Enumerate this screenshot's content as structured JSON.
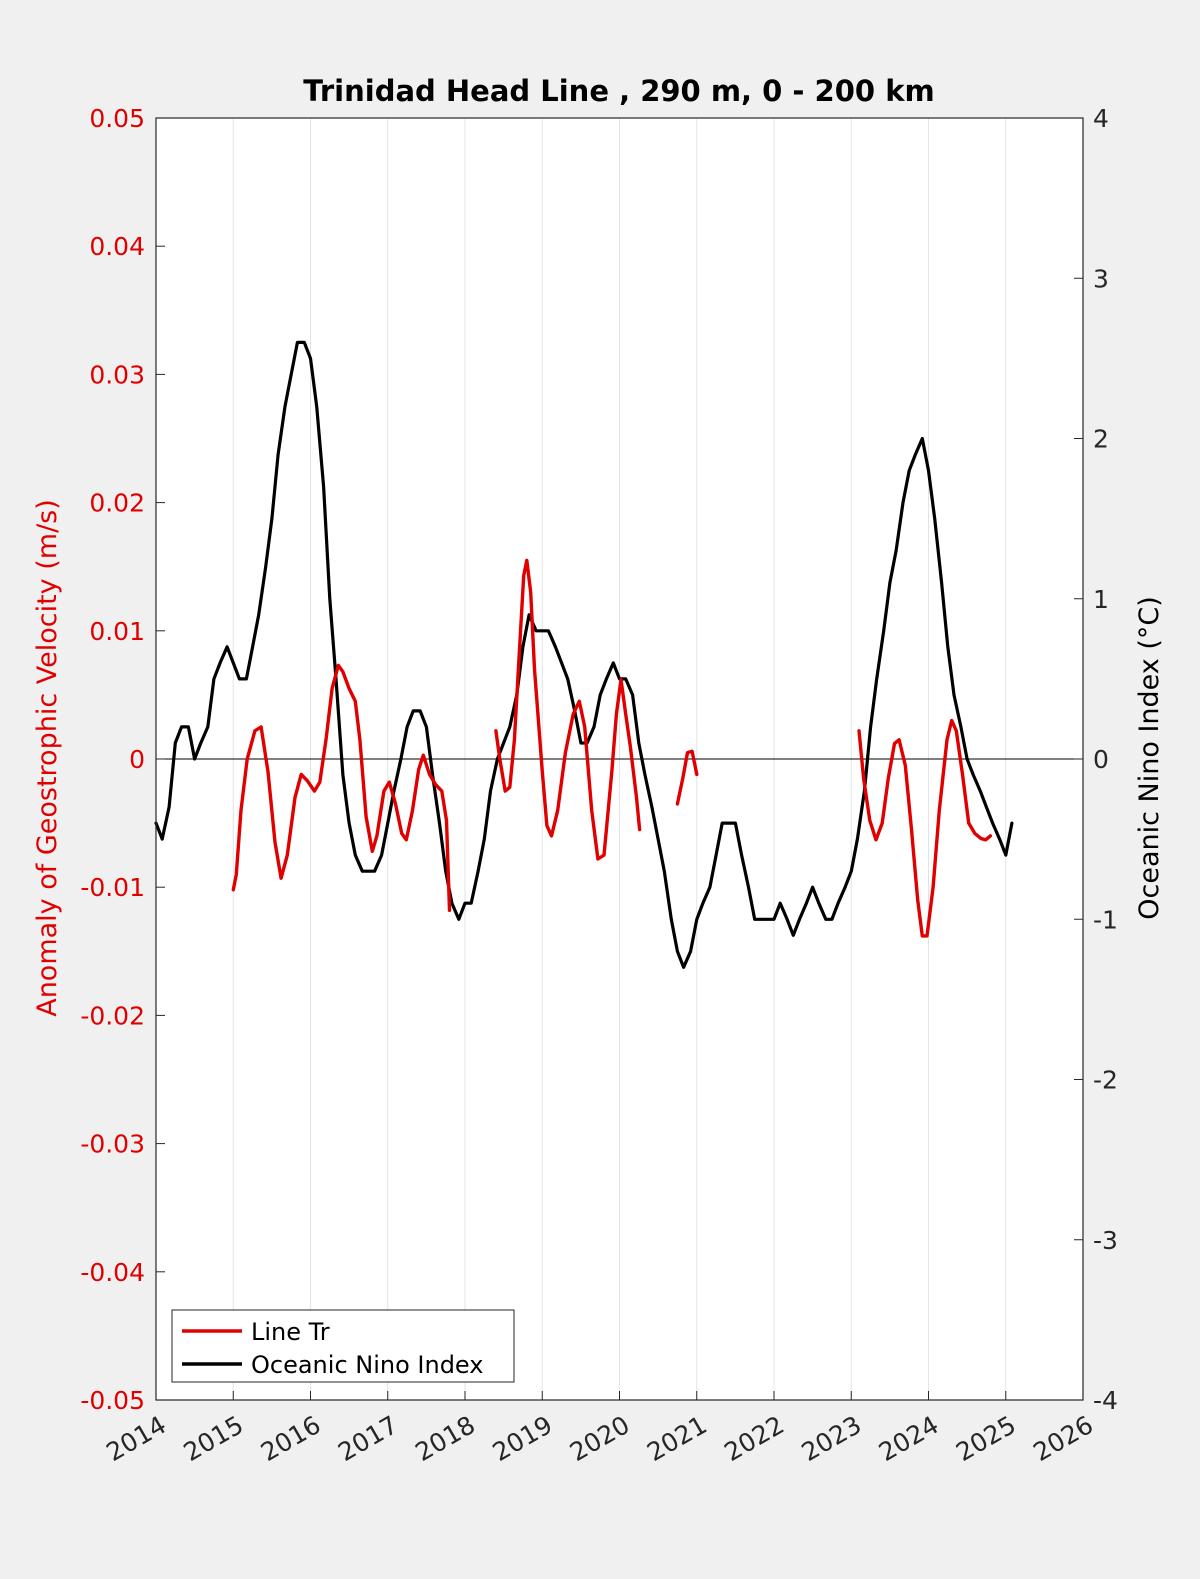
{
  "chart_data": {
    "type": "line",
    "title": "Trinidad Head Line , 290 m, 0 - 200 km",
    "xlabel": "",
    "ylabel_left": "Anomaly of Geostrophic Velocity (m/s)",
    "ylabel_right": "Oceanic Nino Index (°C)",
    "xlim": [
      2014,
      2026
    ],
    "ylim_left": [
      -0.05,
      0.05
    ],
    "ylim_right": [
      -4,
      4
    ],
    "x_ticks": [
      "2014",
      "2015",
      "2016",
      "2017",
      "2018",
      "2019",
      "2020",
      "2021",
      "2022",
      "2023",
      "2024",
      "2025",
      "2026"
    ],
    "y_ticks_left": [
      "0.05",
      "0.04",
      "0.03",
      "0.02",
      "0.01",
      "0",
      "-0.01",
      "-0.02",
      "-0.03",
      "-0.04",
      "-0.05"
    ],
    "y_ticks_right": [
      "4",
      "3",
      "2",
      "1",
      "0",
      "-1",
      "-2",
      "-3",
      "-4"
    ],
    "grid": "vertical",
    "zero_line": true,
    "legend_position": "bottom-left",
    "colors": {
      "left_axis": "#e00000",
      "series_line_tr": "#e00000",
      "series_oni": "#000000",
      "plot_bg": "#ffffff",
      "figure_bg": "#f0f0f0"
    },
    "series": [
      {
        "name": "Line Tr",
        "axis": "left",
        "segments": [
          [
            [
              2015.0,
              -0.0102
            ],
            [
              2015.04,
              -0.009
            ],
            [
              2015.1,
              -0.004
            ],
            [
              2015.18,
              0.0
            ],
            [
              2015.28,
              0.0022
            ],
            [
              2015.36,
              0.0025
            ],
            [
              2015.45,
              -0.001
            ],
            [
              2015.54,
              -0.0065
            ],
            [
              2015.62,
              -0.0093
            ],
            [
              2015.7,
              -0.0075
            ],
            [
              2015.8,
              -0.003
            ],
            [
              2015.88,
              -0.0012
            ],
            [
              2015.96,
              -0.0017
            ],
            [
              2016.05,
              -0.0025
            ],
            [
              2016.12,
              -0.0018
            ],
            [
              2016.2,
              0.0015
            ],
            [
              2016.28,
              0.0055
            ],
            [
              2016.36,
              0.0073
            ],
            [
              2016.42,
              0.0068
            ],
            [
              2016.5,
              0.0055
            ],
            [
              2016.58,
              0.0045
            ],
            [
              2016.64,
              0.0015
            ],
            [
              2016.72,
              -0.0045
            ],
            [
              2016.8,
              -0.0072
            ],
            [
              2016.86,
              -0.006
            ],
            [
              2016.95,
              -0.0025
            ],
            [
              2017.02,
              -0.0018
            ],
            [
              2017.1,
              -0.0035
            ],
            [
              2017.18,
              -0.0058
            ],
            [
              2017.24,
              -0.0063
            ],
            [
              2017.32,
              -0.004
            ],
            [
              2017.4,
              -0.0008
            ],
            [
              2017.46,
              0.0003
            ],
            [
              2017.54,
              -0.0012
            ],
            [
              2017.62,
              -0.002
            ],
            [
              2017.7,
              -0.0025
            ],
            [
              2017.76,
              -0.0048
            ],
            [
              2017.8,
              -0.0118
            ]
          ],
          [
            [
              2018.4,
              0.0022
            ],
            [
              2018.45,
              0.0
            ],
            [
              2018.52,
              -0.0025
            ],
            [
              2018.58,
              -0.0022
            ],
            [
              2018.64,
              0.0015
            ],
            [
              2018.7,
              0.008
            ],
            [
              2018.76,
              0.0143
            ],
            [
              2018.8,
              0.0155
            ],
            [
              2018.85,
              0.013
            ],
            [
              2018.9,
              0.007
            ],
            [
              2019.0,
              -0.001
            ],
            [
              2019.06,
              -0.0052
            ],
            [
              2019.12,
              -0.006
            ],
            [
              2019.2,
              -0.004
            ],
            [
              2019.3,
              0.0005
            ],
            [
              2019.4,
              0.0035
            ],
            [
              2019.48,
              0.0045
            ],
            [
              2019.55,
              0.0025
            ],
            [
              2019.64,
              -0.004
            ],
            [
              2019.72,
              -0.0078
            ],
            [
              2019.8,
              -0.0075
            ],
            [
              2019.9,
              -0.001
            ],
            [
              2019.96,
              0.0035
            ],
            [
              2020.02,
              0.0062
            ],
            [
              2020.08,
              0.0035
            ],
            [
              2020.14,
              0.001
            ],
            [
              2020.22,
              -0.003
            ],
            [
              2020.26,
              -0.0055
            ]
          ],
          [
            [
              2020.75,
              -0.0035
            ],
            [
              2020.82,
              -0.0015
            ],
            [
              2020.88,
              0.0005
            ],
            [
              2020.94,
              0.0006
            ],
            [
              2021.0,
              -0.0012
            ]
          ],
          [
            [
              2023.1,
              0.0022
            ],
            [
              2023.16,
              -0.0015
            ],
            [
              2023.24,
              -0.0048
            ],
            [
              2023.32,
              -0.0063
            ],
            [
              2023.4,
              -0.005
            ],
            [
              2023.48,
              -0.0015
            ],
            [
              2023.56,
              0.0012
            ],
            [
              2023.62,
              0.0015
            ],
            [
              2023.7,
              -0.0005
            ],
            [
              2023.78,
              -0.0055
            ],
            [
              2023.86,
              -0.011
            ],
            [
              2023.92,
              -0.0138
            ],
            [
              2023.98,
              -0.0138
            ],
            [
              2024.06,
              -0.01
            ],
            [
              2024.14,
              -0.004
            ],
            [
              2024.24,
              0.0015
            ],
            [
              2024.3,
              0.003
            ],
            [
              2024.36,
              0.0022
            ],
            [
              2024.44,
              -0.0012
            ],
            [
              2024.52,
              -0.005
            ],
            [
              2024.6,
              -0.0058
            ],
            [
              2024.68,
              -0.0062
            ],
            [
              2024.74,
              -0.0063
            ],
            [
              2024.8,
              -0.006
            ]
          ]
        ]
      },
      {
        "name": "Oceanic Nino Index",
        "axis": "right",
        "points": [
          [
            2014.0,
            -0.4
          ],
          [
            2014.08,
            -0.5
          ],
          [
            2014.17,
            -0.3
          ],
          [
            2014.25,
            0.1
          ],
          [
            2014.33,
            0.2
          ],
          [
            2014.42,
            0.2
          ],
          [
            2014.5,
            0.0
          ],
          [
            2014.58,
            0.1
          ],
          [
            2014.67,
            0.2
          ],
          [
            2014.75,
            0.5
          ],
          [
            2014.83,
            0.6
          ],
          [
            2014.92,
            0.7
          ],
          [
            2015.0,
            0.6
          ],
          [
            2015.08,
            0.5
          ],
          [
            2015.17,
            0.5
          ],
          [
            2015.25,
            0.7
          ],
          [
            2015.33,
            0.9
          ],
          [
            2015.42,
            1.2
          ],
          [
            2015.5,
            1.5
          ],
          [
            2015.58,
            1.9
          ],
          [
            2015.67,
            2.2
          ],
          [
            2015.75,
            2.4
          ],
          [
            2015.83,
            2.6
          ],
          [
            2015.92,
            2.6
          ],
          [
            2016.0,
            2.5
          ],
          [
            2016.08,
            2.2
          ],
          [
            2016.17,
            1.7
          ],
          [
            2016.25,
            1.0
          ],
          [
            2016.33,
            0.5
          ],
          [
            2016.42,
            -0.1
          ],
          [
            2016.5,
            -0.4
          ],
          [
            2016.58,
            -0.6
          ],
          [
            2016.67,
            -0.7
          ],
          [
            2016.75,
            -0.7
          ],
          [
            2016.83,
            -0.7
          ],
          [
            2016.92,
            -0.6
          ],
          [
            2017.0,
            -0.4
          ],
          [
            2017.08,
            -0.2
          ],
          [
            2017.17,
            0.0
          ],
          [
            2017.25,
            0.2
          ],
          [
            2017.33,
            0.3
          ],
          [
            2017.42,
            0.3
          ],
          [
            2017.5,
            0.2
          ],
          [
            2017.58,
            -0.1
          ],
          [
            2017.67,
            -0.4
          ],
          [
            2017.75,
            -0.7
          ],
          [
            2017.83,
            -0.9
          ],
          [
            2017.92,
            -1.0
          ],
          [
            2018.0,
            -0.9
          ],
          [
            2018.08,
            -0.9
          ],
          [
            2018.17,
            -0.7
          ],
          [
            2018.25,
            -0.5
          ],
          [
            2018.33,
            -0.2
          ],
          [
            2018.42,
            0.0
          ],
          [
            2018.5,
            0.1
          ],
          [
            2018.58,
            0.2
          ],
          [
            2018.67,
            0.4
          ],
          [
            2018.75,
            0.7
          ],
          [
            2018.83,
            0.9
          ],
          [
            2018.92,
            0.8
          ],
          [
            2019.0,
            0.8
          ],
          [
            2019.08,
            0.8
          ],
          [
            2019.17,
            0.7
          ],
          [
            2019.25,
            0.6
          ],
          [
            2019.33,
            0.5
          ],
          [
            2019.42,
            0.3
          ],
          [
            2019.5,
            0.1
          ],
          [
            2019.58,
            0.1
          ],
          [
            2019.67,
            0.2
          ],
          [
            2019.75,
            0.4
          ],
          [
            2019.83,
            0.5
          ],
          [
            2019.92,
            0.6
          ],
          [
            2020.0,
            0.5
          ],
          [
            2020.08,
            0.5
          ],
          [
            2020.17,
            0.4
          ],
          [
            2020.25,
            0.1
          ],
          [
            2020.33,
            -0.1
          ],
          [
            2020.42,
            -0.3
          ],
          [
            2020.5,
            -0.5
          ],
          [
            2020.58,
            -0.7
          ],
          [
            2020.67,
            -1.0
          ],
          [
            2020.75,
            -1.2
          ],
          [
            2020.83,
            -1.3
          ],
          [
            2020.92,
            -1.2
          ],
          [
            2021.0,
            -1.0
          ],
          [
            2021.08,
            -0.9
          ],
          [
            2021.17,
            -0.8
          ],
          [
            2021.25,
            -0.6
          ],
          [
            2021.33,
            -0.4
          ],
          [
            2021.42,
            -0.4
          ],
          [
            2021.5,
            -0.4
          ],
          [
            2021.58,
            -0.6
          ],
          [
            2021.67,
            -0.8
          ],
          [
            2021.75,
            -1.0
          ],
          [
            2021.83,
            -1.0
          ],
          [
            2021.92,
            -1.0
          ],
          [
            2022.0,
            -1.0
          ],
          [
            2022.08,
            -0.9
          ],
          [
            2022.17,
            -1.0
          ],
          [
            2022.25,
            -1.1
          ],
          [
            2022.33,
            -1.0
          ],
          [
            2022.42,
            -0.9
          ],
          [
            2022.5,
            -0.8
          ],
          [
            2022.58,
            -0.9
          ],
          [
            2022.67,
            -1.0
          ],
          [
            2022.75,
            -1.0
          ],
          [
            2022.83,
            -0.9
          ],
          [
            2022.92,
            -0.8
          ],
          [
            2023.0,
            -0.7
          ],
          [
            2023.08,
            -0.5
          ],
          [
            2023.17,
            -0.2
          ],
          [
            2023.25,
            0.2
          ],
          [
            2023.33,
            0.5
          ],
          [
            2023.42,
            0.8
          ],
          [
            2023.5,
            1.1
          ],
          [
            2023.58,
            1.3
          ],
          [
            2023.67,
            1.6
          ],
          [
            2023.75,
            1.8
          ],
          [
            2023.83,
            1.9
          ],
          [
            2023.92,
            2.0
          ],
          [
            2024.0,
            1.8
          ],
          [
            2024.08,
            1.5
          ],
          [
            2024.17,
            1.1
          ],
          [
            2024.25,
            0.7
          ],
          [
            2024.33,
            0.4
          ],
          [
            2024.42,
            0.2
          ],
          [
            2024.5,
            0.0
          ],
          [
            2024.58,
            -0.1
          ],
          [
            2024.67,
            -0.2
          ],
          [
            2024.75,
            -0.3
          ],
          [
            2024.83,
            -0.4
          ],
          [
            2024.92,
            -0.5
          ],
          [
            2025.0,
            -0.6
          ],
          [
            2025.08,
            -0.4
          ]
        ]
      }
    ]
  }
}
